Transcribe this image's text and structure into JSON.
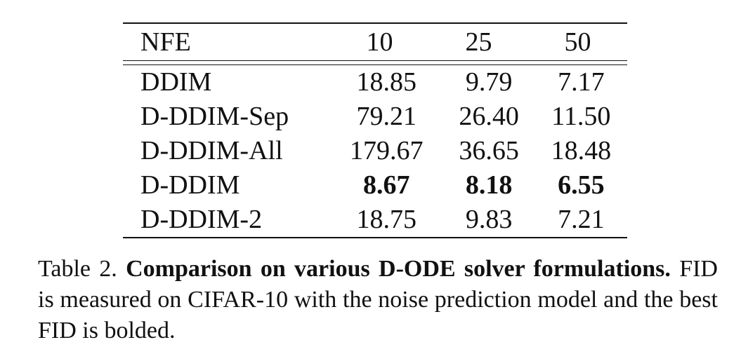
{
  "table": {
    "columns": [
      "NFE",
      "10",
      "25",
      "50"
    ],
    "rows": [
      {
        "method": "DDIM",
        "values": [
          "18.85",
          "9.79",
          "7.17"
        ],
        "bold": [
          false,
          false,
          false
        ]
      },
      {
        "method": "D-DDIM-Sep",
        "values": [
          "79.21",
          "26.40",
          "11.50"
        ],
        "bold": [
          false,
          false,
          false
        ]
      },
      {
        "method": "D-DDIM-All",
        "values": [
          "179.67",
          "36.65",
          "18.48"
        ],
        "bold": [
          false,
          false,
          false
        ]
      },
      {
        "method": "D-DDIM",
        "values": [
          "8.67",
          "8.18",
          "6.55"
        ],
        "bold": [
          true,
          true,
          true
        ]
      },
      {
        "method": "D-DDIM-2",
        "values": [
          "18.75",
          "9.83",
          "7.21"
        ],
        "bold": [
          false,
          false,
          false
        ]
      }
    ]
  },
  "caption": {
    "label": "Table 2.",
    "title": "Comparison on various D-ODE solver formulations.",
    "text": "FID is measured on CIFAR-10 with the noise prediction model and the best FID is bolded."
  }
}
